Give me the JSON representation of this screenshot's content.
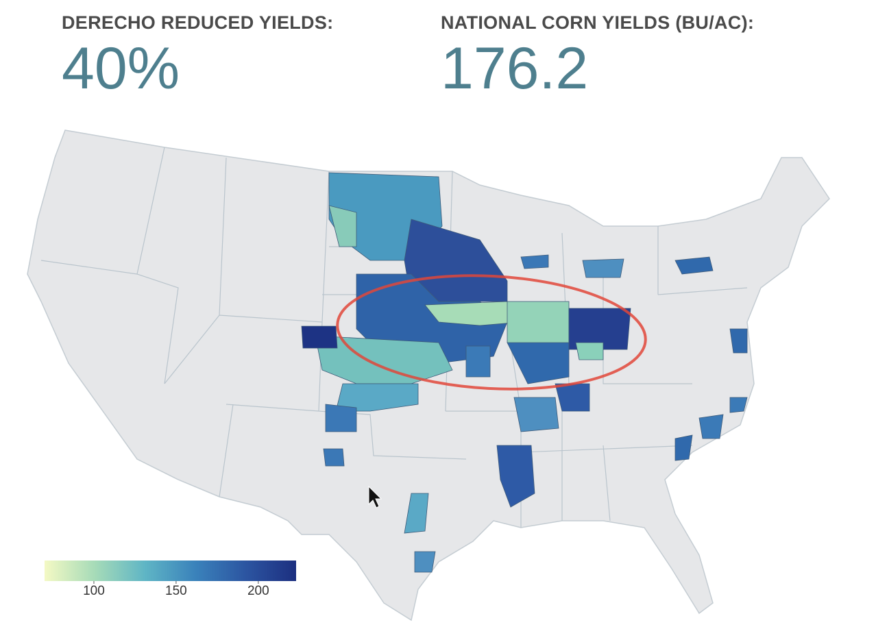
{
  "header": {
    "stats": [
      {
        "label": "DERECHO REDUCED YIELDS:",
        "value": "40%"
      },
      {
        "label": "NATIONAL CORN YIELDS (BU/AC):",
        "value": "176.2"
      }
    ]
  },
  "colorbar": {
    "range": [
      70,
      223
    ],
    "ticks": [
      100,
      150,
      200
    ],
    "colors": [
      "#f4f9c4",
      "#a6dbb8",
      "#5fb5c5",
      "#3a82bb",
      "#2c55a1",
      "#1c2f80"
    ]
  }
}
